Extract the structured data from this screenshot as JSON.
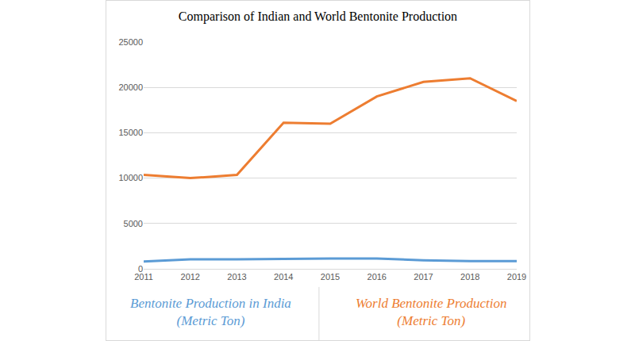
{
  "chart_data": {
    "type": "line",
    "title": "Comparison of Indian and World Bentonite Production",
    "categories": [
      "2011",
      "2012",
      "2013",
      "2014",
      "2015",
      "2016",
      "2017",
      "2018",
      "2019"
    ],
    "series": [
      {
        "name": "Bentonite Production in India (Metric Ton)",
        "color": "#5b9bd5",
        "values": [
          800,
          1050,
          1050,
          1120,
          1130,
          1130,
          950,
          850,
          850
        ]
      },
      {
        "name": "World Bentonite Production (Metric Ton)",
        "color": "#ed7d31",
        "values": [
          10350,
          10000,
          10350,
          16100,
          16000,
          19000,
          20600,
          21000,
          18500
        ]
      }
    ],
    "ylim": [
      0,
      25000
    ],
    "yticks": [
      0,
      5000,
      10000,
      15000,
      20000,
      25000
    ],
    "grid": true
  }
}
